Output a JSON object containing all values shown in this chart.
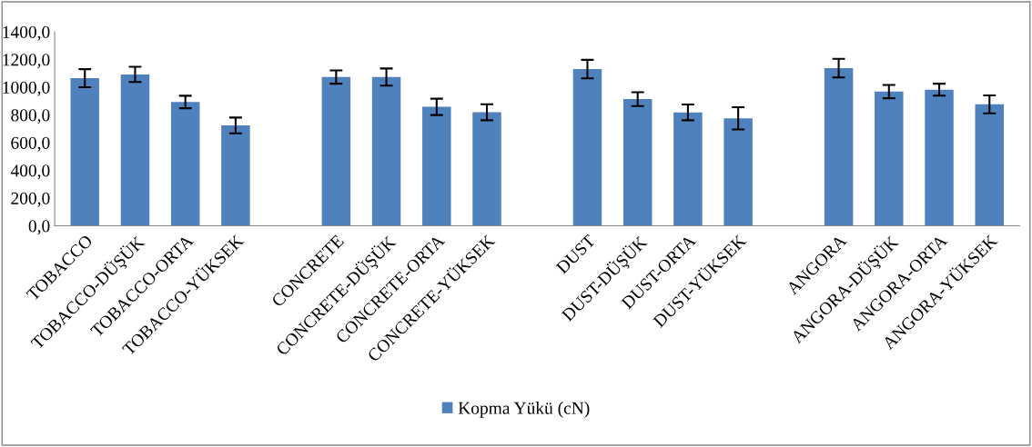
{
  "chart_data": {
    "type": "bar",
    "categories": [
      "TOBACCO",
      "TOBACCO-DÜŞÜK",
      "TOBACCO-ORTA",
      "TOBACCO-YÜKSEK",
      null,
      "CONCRETE",
      "CONCRETE-DÜŞÜK",
      "CONCRETE-ORTA",
      "CONCRETE-YÜKSEK",
      null,
      "DUST",
      "DUST-DÜŞÜK",
      "DUST-ORTA",
      "DUST-YÜKSEK",
      null,
      "ANGORA",
      "ANGORA-DÜŞÜK",
      "ANGORA-ORTA",
      "ANGORA-YÜKSEK"
    ],
    "series": [
      {
        "name": "Kopma Yükü (cN)",
        "color": "#4f81bd",
        "values": [
          1065,
          1092,
          893,
          724,
          null,
          1073,
          1073,
          858,
          819,
          null,
          1130,
          914,
          818,
          775,
          null,
          1137,
          968,
          982,
          876
        ],
        "errors": [
          65,
          55,
          45,
          57,
          null,
          48,
          62,
          59,
          58,
          null,
          67,
          50,
          57,
          80,
          null,
          67,
          48,
          43,
          65
        ]
      }
    ],
    "ylim": [
      0,
      1400
    ],
    "yticks": [
      {
        "value": 0,
        "label": "0,0"
      },
      {
        "value": 200,
        "label": "200,0"
      },
      {
        "value": 400,
        "label": "400,0"
      },
      {
        "value": 600,
        "label": "600,0"
      },
      {
        "value": 800,
        "label": "800,0"
      },
      {
        "value": 1000,
        "label": "1000,0"
      },
      {
        "value": 1200,
        "label": "1200,0"
      },
      {
        "value": 1400,
        "label": "1400,0"
      }
    ],
    "grid": false,
    "legend": "bottom"
  }
}
